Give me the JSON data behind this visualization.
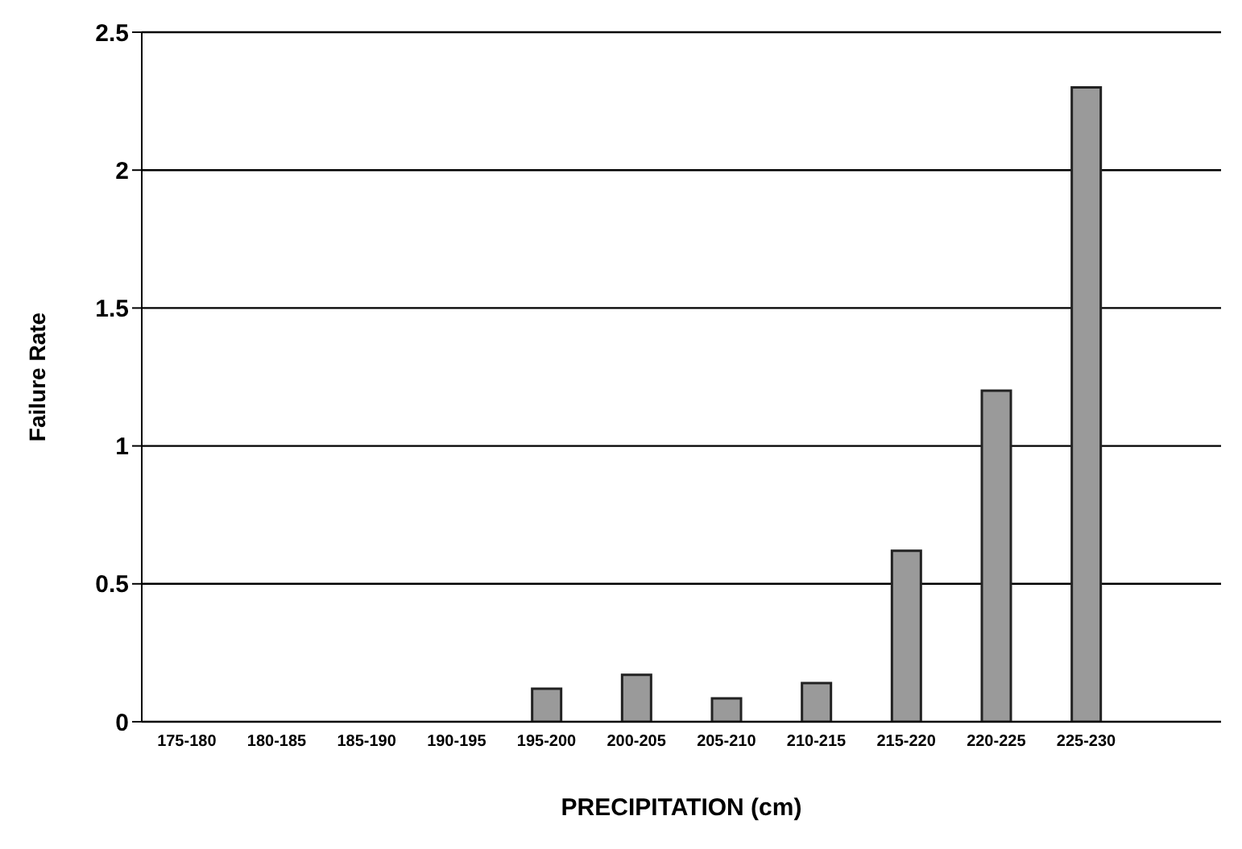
{
  "chart_data": {
    "type": "bar",
    "xlabel": "PRECIPITATION (cm)",
    "ylabel": "Failure Rate",
    "categories": [
      "175-180",
      "180-185",
      "185-190",
      "190-195",
      "195-200",
      "200-205",
      "205-210",
      "210-215",
      "215-220",
      "220-225",
      "225-230",
      null
    ],
    "values": [
      0,
      0,
      0,
      0,
      0.12,
      0.17,
      0.085,
      0.14,
      0.62,
      1.2,
      2.3,
      null
    ],
    "color": "#9a9a9a",
    "ylim": [
      0,
      2.5
    ],
    "yticks": [
      0,
      0.5,
      1,
      1.5,
      2,
      2.5
    ],
    "grid": "y"
  }
}
